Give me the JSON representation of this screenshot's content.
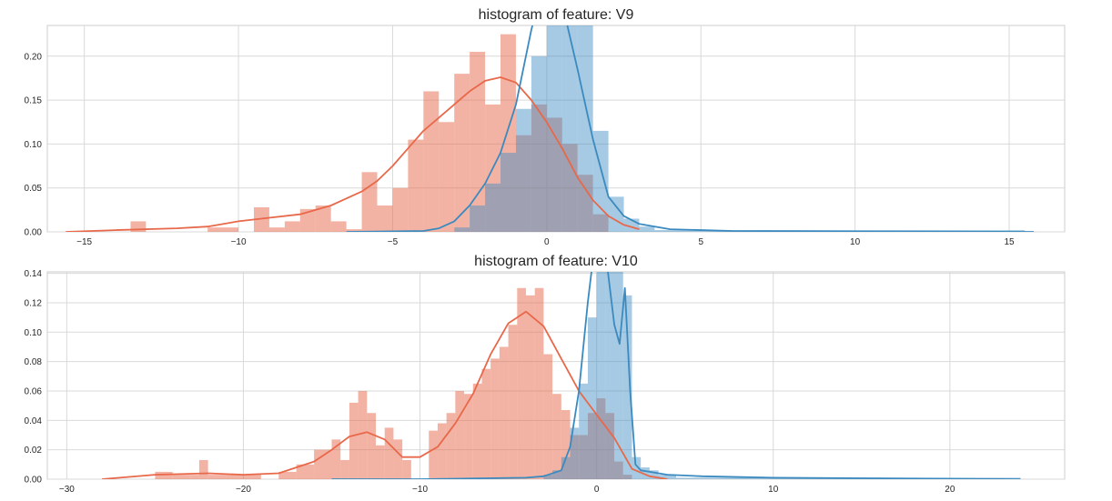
{
  "chart_data": [
    {
      "type": "histogram",
      "title": "histogram of feature: V9",
      "xlabel": "",
      "ylabel": "",
      "xlim": [
        -16.2,
        16.8
      ],
      "ylim": [
        0,
        0.235
      ],
      "xticks": [
        -15,
        -10,
        -5,
        0,
        5,
        10,
        15
      ],
      "yticks": [
        0.0,
        0.05,
        0.1,
        0.15,
        0.2
      ],
      "xtick_labels": [
        "−15",
        "−10",
        "−5",
        "0",
        "5",
        "10",
        "15"
      ],
      "ytick_labels": [
        "0.00",
        "0.05",
        "0.10",
        "0.15",
        "0.20"
      ],
      "grid": true,
      "series": [
        {
          "color": "#e8684a",
          "bin_edges": [
            -15.0,
            -14.0,
            -13.5,
            -13.0,
            -12.0,
            -11.0,
            -10.0,
            -9.5,
            -9.0,
            -8.5,
            -8.0,
            -7.5,
            -7.0,
            -6.5,
            -6.0,
            -5.5,
            -5.0,
            -4.5,
            -4.0,
            -3.5,
            -3.0,
            -2.5,
            -2.0,
            -1.5,
            -1.0,
            -0.5,
            0.0,
            0.5,
            1.0,
            1.5,
            2.0,
            2.5
          ],
          "bin_heights": [
            0.0,
            0.0,
            0.012,
            0.0,
            0.0,
            0.005,
            0.0,
            0.028,
            0.005,
            0.012,
            0.026,
            0.03,
            0.012,
            0.003,
            0.068,
            0.03,
            0.05,
            0.105,
            0.16,
            0.125,
            0.18,
            0.205,
            0.145,
            0.225,
            0.11,
            0.145,
            0.13,
            0.1,
            0.065,
            0.02,
            0.0
          ],
          "kde_x": [
            -15.6,
            -14,
            -12,
            -11,
            -10,
            -9,
            -8,
            -7,
            -6.5,
            -6,
            -5.5,
            -5,
            -4.5,
            -4,
            -3.5,
            -3,
            -2.5,
            -2,
            -1.5,
            -1,
            -0.5,
            0,
            0.5,
            1,
            1.5,
            2,
            2.5,
            3
          ],
          "kde_y": [
            0,
            0.002,
            0.004,
            0.006,
            0.012,
            0.016,
            0.02,
            0.03,
            0.038,
            0.046,
            0.058,
            0.075,
            0.095,
            0.115,
            0.13,
            0.145,
            0.16,
            0.172,
            0.176,
            0.17,
            0.15,
            0.125,
            0.095,
            0.062,
            0.036,
            0.018,
            0.008,
            0.003
          ]
        },
        {
          "color": "#3a8ac0",
          "bin_edges": [
            -6.0,
            -3.0,
            -2.5,
            -2.0,
            -1.5,
            -1.0,
            -0.5,
            0.0,
            0.5,
            1.0,
            1.5,
            2.0,
            2.5,
            3.0,
            3.5,
            15.5
          ],
          "bin_heights": [
            0.0,
            0.005,
            0.03,
            0.055,
            0.09,
            0.14,
            0.2,
            0.235,
            0.235,
            0.235,
            0.115,
            0.04,
            0.015,
            0.006,
            0.002
          ],
          "kde_x": [
            -6.5,
            -4,
            -3.5,
            -3,
            -2.5,
            -2,
            -1.5,
            -1,
            -0.5,
            0,
            0.5,
            1,
            1.5,
            2,
            2.5,
            3,
            4,
            6,
            10,
            15.8
          ],
          "kde_y": [
            0,
            0.001,
            0.004,
            0.012,
            0.03,
            0.055,
            0.09,
            0.145,
            0.23,
            0.3,
            0.26,
            0.185,
            0.105,
            0.04,
            0.018,
            0.009,
            0.003,
            0.001,
            0.0005,
            0
          ]
        }
      ]
    },
    {
      "type": "histogram",
      "title": "histogram of feature: V10",
      "xlabel": "",
      "ylabel": "",
      "xlim": [
        -31.1,
        26.5
      ],
      "ylim": [
        0,
        0.141
      ],
      "xticks": [
        -30,
        -20,
        -10,
        0,
        10,
        20
      ],
      "yticks": [
        0.0,
        0.02,
        0.04,
        0.06,
        0.08,
        0.1,
        0.12,
        0.14
      ],
      "xtick_labels": [
        "−30",
        "−20",
        "−10",
        "0",
        "10",
        "20"
      ],
      "ytick_labels": [
        "0.00",
        "0.02",
        "0.04",
        "0.06",
        "0.08",
        "0.10",
        "0.12",
        "0.14"
      ],
      "grid": true,
      "series": [
        {
          "color": "#e8684a",
          "bin_edges": [
            -25.0,
            -24.0,
            -23.0,
            -22.5,
            -22.0,
            -21.0,
            -19.0,
            -18.0,
            -17.0,
            -16.0,
            -15.0,
            -14.5,
            -14.0,
            -13.5,
            -13.0,
            -12.5,
            -12.0,
            -11.5,
            -11.0,
            -10.5,
            -10.0,
            -9.5,
            -9.0,
            -8.5,
            -8.0,
            -7.5,
            -7.0,
            -6.5,
            -6.0,
            -5.5,
            -5.0,
            -4.5,
            -4.0,
            -3.5,
            -3.0,
            -2.5,
            -2.0,
            -1.5,
            -1.0,
            -0.5,
            0.0,
            0.5,
            1.0,
            1.5,
            2.0
          ],
          "bin_heights": [
            0.005,
            0.003,
            0.003,
            0.013,
            0.003,
            0.003,
            0.0,
            0.005,
            0.01,
            0.02,
            0.027,
            0.013,
            0.052,
            0.06,
            0.045,
            0.023,
            0.035,
            0.027,
            0.013,
            0.0,
            0.0,
            0.033,
            0.038,
            0.045,
            0.06,
            0.058,
            0.065,
            0.075,
            0.082,
            0.09,
            0.105,
            0.13,
            0.125,
            0.13,
            0.085,
            0.058,
            0.047,
            0.03,
            0.03,
            0.045,
            0.055,
            0.045,
            0.012,
            0.003
          ],
          "kde_x": [
            -28,
            -25,
            -22,
            -20,
            -18,
            -16,
            -15,
            -14,
            -13,
            -12,
            -11,
            -10,
            -9,
            -8,
            -7,
            -6,
            -5,
            -4,
            -3,
            -2,
            -1,
            0,
            1,
            2,
            3,
            4
          ],
          "kde_y": [
            0,
            0.003,
            0.004,
            0.003,
            0.004,
            0.012,
            0.02,
            0.029,
            0.032,
            0.027,
            0.015,
            0.015,
            0.022,
            0.038,
            0.058,
            0.085,
            0.106,
            0.114,
            0.104,
            0.082,
            0.06,
            0.044,
            0.028,
            0.007,
            0.002,
            0
          ]
        },
        {
          "color": "#3a8ac0",
          "bin_edges": [
            -10.0,
            -3.0,
            -2.5,
            -2.0,
            -1.5,
            -1.0,
            -0.5,
            0.0,
            0.5,
            1.0,
            1.5,
            2.0,
            2.5,
            3.0,
            3.5,
            4.5,
            24.0
          ],
          "bin_heights": [
            0.0,
            0.003,
            0.006,
            0.015,
            0.035,
            0.065,
            0.11,
            0.141,
            0.141,
            0.141,
            0.125,
            0.015,
            0.008,
            0.006,
            0.003,
            0.001
          ],
          "kde_x": [
            -15,
            -10,
            -4,
            -3,
            -2,
            -1.5,
            -1,
            -0.5,
            0,
            0.5,
            1,
            1.3,
            1.6,
            1.9,
            2.2,
            2.5,
            3,
            4,
            6,
            10,
            24
          ],
          "kde_y": [
            0,
            0,
            0.001,
            0.002,
            0.006,
            0.022,
            0.06,
            0.12,
            0.17,
            0.155,
            0.105,
            0.092,
            0.13,
            0.06,
            0.01,
            0.006,
            0.005,
            0.003,
            0.002,
            0.001,
            0
          ]
        }
      ]
    }
  ]
}
